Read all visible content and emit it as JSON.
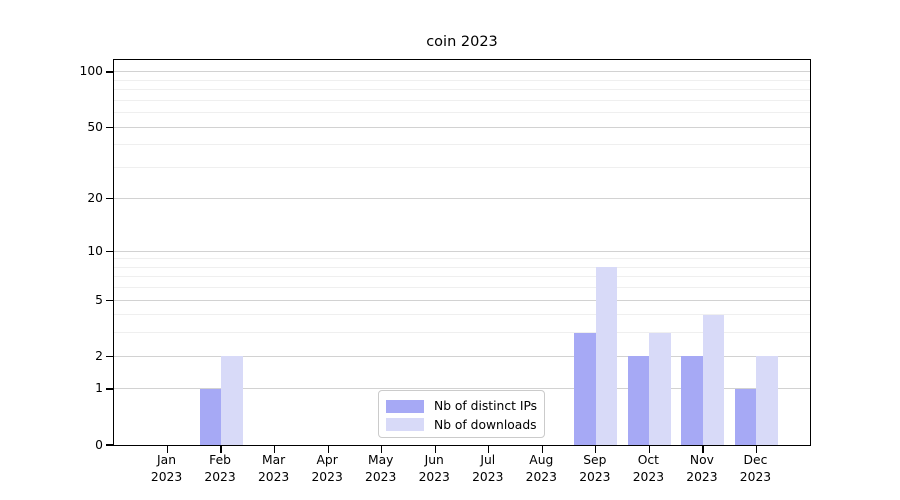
{
  "figure_title": "coin 2023",
  "chart_data": {
    "type": "bar",
    "title": "coin 2023",
    "categories": [
      "Jan",
      "Feb",
      "Mar",
      "Apr",
      "May",
      "Jun",
      "Jul",
      "Aug",
      "Sep",
      "Oct",
      "Nov",
      "Dec"
    ],
    "category_year": "2023",
    "series": [
      {
        "name": "Nb of distinct IPs",
        "color": "#a6a9f5",
        "values": [
          0,
          1,
          0,
          0,
          0,
          0,
          0,
          0,
          3,
          2,
          2,
          1
        ]
      },
      {
        "name": "Nb of downloads",
        "color": "#d8daf8",
        "values": [
          0,
          2,
          0,
          0,
          0,
          0,
          0,
          0,
          8,
          3,
          4,
          2
        ]
      }
    ],
    "xlabel": "",
    "ylabel": "",
    "yscale": "log1p",
    "ylim": [
      0,
      116
    ],
    "y_ticks": [
      0,
      1,
      2,
      5,
      10,
      20,
      50,
      100
    ],
    "y_minor_ticks": [
      3,
      4,
      6,
      7,
      8,
      9,
      30,
      40,
      60,
      70,
      80,
      90
    ],
    "grid": "horizontal-major-and-minor",
    "legend_position": "lower center (inside axes)",
    "colors": {
      "spine": "#000000",
      "major_grid": "#d2d2d2",
      "minor_grid": "#efefef",
      "legend_border": "#cbcbcb",
      "text": "#000000"
    }
  }
}
